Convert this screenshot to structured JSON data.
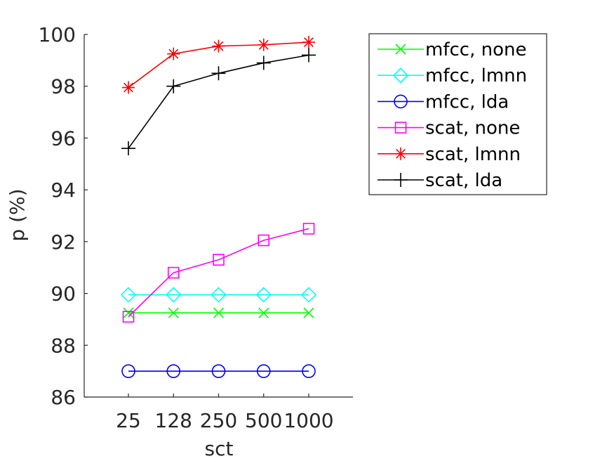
{
  "chart_data": {
    "type": "line",
    "xlabel": "sct",
    "ylabel": "p (%)",
    "categories": [
      "25",
      "128",
      "250",
      "500",
      "1000"
    ],
    "ylim": [
      86,
      100
    ],
    "yticks": [
      86,
      88,
      90,
      92,
      94,
      96,
      98,
      100
    ],
    "grid": false,
    "legend_position": "outside-right",
    "series": [
      {
        "name": "mfcc, none",
        "color": "#00ff00",
        "marker": "x",
        "values": [
          89.25,
          89.25,
          89.25,
          89.25,
          89.25
        ]
      },
      {
        "name": "mfcc, lmnn",
        "color": "#00ffff",
        "marker": "diamond",
        "values": [
          89.95,
          89.95,
          89.95,
          89.95,
          89.95
        ]
      },
      {
        "name": "mfcc, lda",
        "color": "#0000ff",
        "marker": "circle",
        "values": [
          87.0,
          87.0,
          87.0,
          87.0,
          87.0
        ]
      },
      {
        "name": "scat, none",
        "color": "#ff00ff",
        "marker": "square",
        "values": [
          89.1,
          90.8,
          91.3,
          92.05,
          92.5
        ]
      },
      {
        "name": "scat, lmnn",
        "color": "#ff0000",
        "marker": "star",
        "values": [
          97.95,
          99.25,
          99.55,
          99.6,
          99.7
        ]
      },
      {
        "name": "scat, lda",
        "color": "#000000",
        "marker": "plus",
        "values": [
          95.6,
          98.0,
          98.5,
          98.9,
          99.2
        ]
      }
    ]
  }
}
